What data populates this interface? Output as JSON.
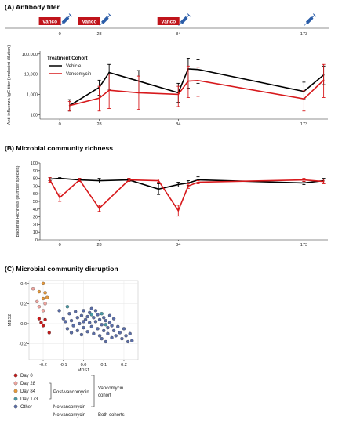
{
  "colors": {
    "vehicle": "#000000",
    "vancomycin": "#d7191c",
    "vanco_box": "#c0141b",
    "syringe": "#2b5da8"
  },
  "chart_data": [
    {
      "type": "line",
      "panel_label": "(A) Antibody titer",
      "timeline": {
        "vanco_label": "Vanco",
        "vanco_x": [
          -7,
          21,
          77
        ],
        "syringe_x": [
          0,
          28,
          84,
          173
        ]
      },
      "ylabel": "Anti-influenza IgG titer (endpoint dilution)",
      "x_ticks": [
        "0",
        "28",
        "84",
        "173"
      ],
      "x_tick_values": [
        0,
        28,
        84,
        173
      ],
      "xlim": [
        -14,
        190
      ],
      "y_scale": "log",
      "ylim": [
        60,
        140000
      ],
      "y_ticks": [
        "100",
        "1,000",
        "10,000",
        "100,000"
      ],
      "y_tick_values": [
        100,
        1000,
        10000,
        100000
      ],
      "legend_title": "Treatment Cohort",
      "legend_position": "top-left",
      "series": [
        {
          "name": "Vehicle",
          "color": "#000000",
          "points": [
            {
              "x": 7,
              "y": 280,
              "lo": 150,
              "hi": 550
            },
            {
              "x": 28,
              "y": 2200,
              "lo": 900,
              "hi": 5000
            },
            {
              "x": 35,
              "y": 12000,
              "lo": 1800,
              "hi": 30000
            },
            {
              "x": 56,
              "y": 4500,
              "lo": 1200,
              "hi": 15000
            },
            {
              "x": 84,
              "y": 1200,
              "lo": 400,
              "hi": 3500
            },
            {
              "x": 91,
              "y": 18000,
              "lo": 2000,
              "hi": 60000
            },
            {
              "x": 98,
              "y": 17000,
              "lo": 3500,
              "hi": 55000
            },
            {
              "x": 173,
              "y": 1400,
              "lo": 600,
              "hi": 4000
            },
            {
              "x": 187,
              "y": 9000,
              "lo": 3000,
              "hi": 25000
            }
          ]
        },
        {
          "name": "Vancomycin",
          "color": "#d7191c",
          "points": [
            {
              "x": 7,
              "y": 280,
              "lo": 150,
              "hi": 450
            },
            {
              "x": 28,
              "y": 650,
              "lo": 150,
              "hi": 2500
            },
            {
              "x": 35,
              "y": 1600,
              "lo": 200,
              "hi": 10000
            },
            {
              "x": 56,
              "y": 1200,
              "lo": 180,
              "hi": 8000
            },
            {
              "x": 84,
              "y": 1000,
              "lo": 250,
              "hi": 2500
            },
            {
              "x": 91,
              "y": 4500,
              "lo": 700,
              "hi": 25000
            },
            {
              "x": 98,
              "y": 4800,
              "lo": 800,
              "hi": 22000
            },
            {
              "x": 173,
              "y": 600,
              "lo": 150,
              "hi": 1500
            },
            {
              "x": 187,
              "y": 5000,
              "lo": 700,
              "hi": 30000
            }
          ]
        }
      ]
    },
    {
      "type": "line",
      "panel_label": "(B) Microbial community richness",
      "ylabel": "Bacterial Richness (number species)",
      "x_ticks": [
        "0",
        "28",
        "84",
        "173"
      ],
      "x_tick_values": [
        0,
        28,
        84,
        173
      ],
      "xlim": [
        -14,
        190
      ],
      "ylim": [
        0,
        100
      ],
      "y_ticks": [
        "0",
        "10",
        "20",
        "30",
        "40",
        "50",
        "60",
        "70",
        "80",
        "90",
        "100"
      ],
      "y_tick_values": [
        0,
        10,
        20,
        30,
        40,
        50,
        60,
        70,
        80,
        90,
        100
      ],
      "series": [
        {
          "name": "Vehicle",
          "color": "#000000",
          "points": [
            {
              "x": -7,
              "y": 79,
              "e": 2
            },
            {
              "x": 0,
              "y": 80,
              "e": 1
            },
            {
              "x": 14,
              "y": 78,
              "e": 2
            },
            {
              "x": 28,
              "y": 77,
              "e": 3
            },
            {
              "x": 49,
              "y": 78,
              "e": 2
            },
            {
              "x": 70,
              "y": 66,
              "e": 7
            },
            {
              "x": 84,
              "y": 72,
              "e": 3
            },
            {
              "x": 91,
              "y": 74,
              "e": 3
            },
            {
              "x": 98,
              "y": 78,
              "e": 4
            },
            {
              "x": 173,
              "y": 74,
              "e": 2
            },
            {
              "x": 187,
              "y": 77,
              "e": 3
            }
          ]
        },
        {
          "name": "Vancomycin",
          "color": "#d7191c",
          "points": [
            {
              "x": -7,
              "y": 78,
              "e": 3
            },
            {
              "x": 0,
              "y": 55,
              "e": 5
            },
            {
              "x": 14,
              "y": 78,
              "e": 2
            },
            {
              "x": 28,
              "y": 41,
              "e": 4
            },
            {
              "x": 49,
              "y": 78,
              "e": 2
            },
            {
              "x": 70,
              "y": 77,
              "e": 2
            },
            {
              "x": 84,
              "y": 38,
              "e": 7
            },
            {
              "x": 91,
              "y": 70,
              "e": 3
            },
            {
              "x": 98,
              "y": 75,
              "e": 2
            },
            {
              "x": 173,
              "y": 78,
              "e": 2
            },
            {
              "x": 187,
              "y": 76,
              "e": 3
            }
          ]
        }
      ]
    },
    {
      "type": "scatter",
      "panel_label": "(C) Microbial community disruption",
      "xlabel": "MDS1",
      "ylabel": "MDS2",
      "xlim": [
        -0.27,
        0.27
      ],
      "ylim": [
        -0.36,
        0.43
      ],
      "x_ticks": [
        "-0.2",
        "-0.1",
        "0.0",
        "0.1",
        "0.2"
      ],
      "x_tick_values": [
        -0.2,
        -0.1,
        0.0,
        0.1,
        0.2
      ],
      "y_ticks": [
        "-0.2",
        "0.0",
        "0.2",
        "0.4"
      ],
      "y_tick_values": [
        -0.2,
        0.0,
        0.2,
        0.4
      ],
      "groups": [
        {
          "name": "Day 0",
          "color": "#c51b1b",
          "points": [
            [
              -0.21,
              0.01
            ],
            [
              -0.19,
              0.04
            ],
            [
              -0.2,
              -0.02
            ],
            [
              -0.17,
              -0.09
            ],
            [
              -0.22,
              0.05
            ]
          ]
        },
        {
          "name": "Day 28",
          "color": "#f2a6a0",
          "points": [
            [
              -0.25,
              0.35
            ],
            [
              -0.23,
              0.22
            ],
            [
              -0.22,
              0.17
            ],
            [
              -0.19,
              0.2
            ],
            [
              -0.2,
              0.13
            ]
          ]
        },
        {
          "name": "Day 84",
          "color": "#e99b3c",
          "points": [
            [
              -0.2,
              0.4
            ],
            [
              -0.22,
              0.32
            ],
            [
              -0.18,
              0.26
            ],
            [
              -0.2,
              0.25
            ],
            [
              -0.19,
              0.31
            ]
          ]
        },
        {
          "name": "Day 173",
          "color": "#4a9aa6",
          "points": [
            [
              -0.08,
              0.17
            ],
            [
              0.04,
              0.09
            ],
            [
              0.09,
              0.1
            ],
            [
              0.11,
              -0.01
            ]
          ]
        },
        {
          "name": "Other",
          "color": "#5b6ea8",
          "points": [
            [
              -0.12,
              0.13
            ],
            [
              -0.1,
              0.05
            ],
            [
              -0.07,
              0.1
            ],
            [
              -0.06,
              0.03
            ],
            [
              -0.05,
              -0.02
            ],
            [
              -0.04,
              0.12
            ],
            [
              -0.03,
              0.06
            ],
            [
              -0.02,
              0.0
            ],
            [
              -0.01,
              0.08
            ],
            [
              0.0,
              0.13
            ],
            [
              0.0,
              -0.04
            ],
            [
              0.01,
              0.04
            ],
            [
              0.02,
              -0.08
            ],
            [
              0.03,
              0.11
            ],
            [
              0.03,
              0.01
            ],
            [
              0.04,
              -0.03
            ],
            [
              0.05,
              0.06
            ],
            [
              0.05,
              -0.1
            ],
            [
              0.06,
              0.02
            ],
            [
              0.07,
              0.09
            ],
            [
              0.07,
              -0.05
            ],
            [
              0.08,
              0.04
            ],
            [
              0.08,
              -0.12
            ],
            [
              0.09,
              -0.01
            ],
            [
              0.1,
              0.06
            ],
            [
              0.1,
              -0.07
            ],
            [
              0.11,
              0.03
            ],
            [
              0.12,
              -0.04
            ],
            [
              0.12,
              -0.1
            ],
            [
              0.13,
              0.01
            ],
            [
              0.14,
              -0.02
            ],
            [
              0.14,
              -0.14
            ],
            [
              0.15,
              0.05
            ],
            [
              0.15,
              -0.07
            ],
            [
              0.16,
              -0.12
            ],
            [
              0.17,
              -0.03
            ],
            [
              0.18,
              -0.09
            ],
            [
              0.19,
              -0.15
            ],
            [
              0.2,
              -0.05
            ],
            [
              0.21,
              -0.12
            ],
            [
              0.22,
              -0.18
            ],
            [
              0.23,
              -0.1
            ],
            [
              0.24,
              -0.17
            ],
            [
              -0.08,
              -0.05
            ],
            [
              -0.09,
              0.02
            ],
            [
              -0.06,
              -0.09
            ],
            [
              -0.03,
              -0.07
            ],
            [
              -0.01,
              -0.11
            ],
            [
              0.02,
              0.07
            ],
            [
              0.04,
              0.15
            ],
            [
              0.06,
              0.13
            ],
            [
              0.09,
              -0.15
            ],
            [
              0.11,
              -0.18
            ],
            [
              0.0,
              0.02
            ],
            [
              0.13,
              0.08
            ]
          ]
        }
      ],
      "legend": {
        "rows": [
          {
            "label": "Day 0"
          },
          {
            "label": "Day 28"
          },
          {
            "label": "Day 84"
          },
          {
            "label": "Day 173"
          },
          {
            "label": "Other"
          }
        ],
        "post_vancomycin": "Post-vancomycin",
        "no_vancomycin_173": "No vancomycin",
        "no_vancomycin_other": "No vancomycin",
        "vanco_cohort_1": "Vancomycin",
        "vanco_cohort_2": "cohort",
        "both_cohorts": "Both cohorts"
      }
    }
  ]
}
